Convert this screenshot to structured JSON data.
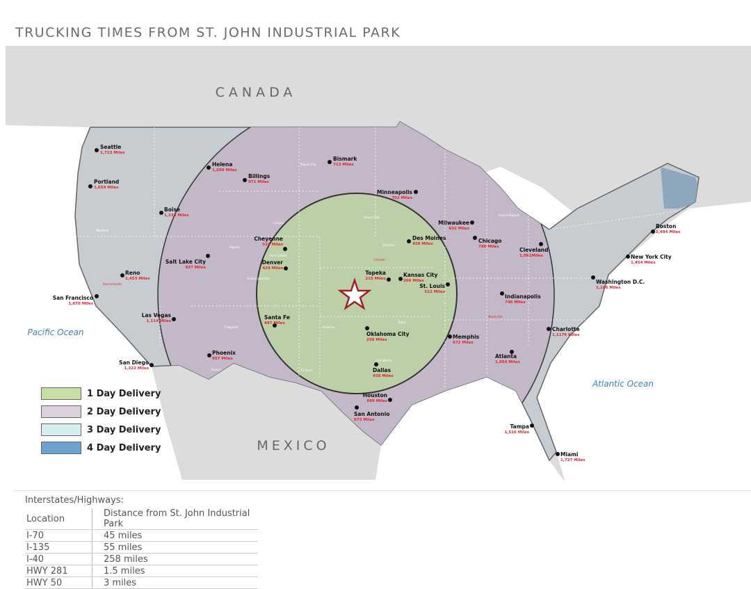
{
  "title": "TRUCKING TIMES FROM ST. JOHN INDUSTRIAL PARK",
  "labels": {
    "canada": "CANADA",
    "mexico": "MEXICO",
    "pacific": "Pacific Ocean",
    "atlantic": "Atlantic Ocean"
  },
  "colors": {
    "day1": "#bccfa8",
    "day2": "#c3b8c8",
    "day3": "#c6ccd0",
    "day4": "#8ea7bc",
    "land_other": "#dcdcdc",
    "distance_text": "#e8202a",
    "star": "#a51c24"
  },
  "legend": [
    {
      "label": "1 Day Delivery",
      "color": "#c6dfa4"
    },
    {
      "label": "2 Day Delivery",
      "color": "#dccfdf"
    },
    {
      "label": "3 Day Delivery",
      "color": "#d4eef0"
    },
    {
      "label": "4 Day Delivery",
      "color": "#6da2d0"
    }
  ],
  "cities": [
    {
      "name": "Seattle",
      "dist": "1,723 Miles"
    },
    {
      "name": "Portland",
      "dist": "1,659 Miles"
    },
    {
      "name": "Boise",
      "dist": "1,233 Miles"
    },
    {
      "name": "Helena",
      "dist": "1,209 Miles"
    },
    {
      "name": "Billings",
      "dist": "971 Miles"
    },
    {
      "name": "Bismark",
      "dist": "713 Miles"
    },
    {
      "name": "Minneapolis",
      "dist": "702 Miles"
    },
    {
      "name": "Milwaukee",
      "dist": "832 Miles"
    },
    {
      "name": "Chicago",
      "dist": "790 Miles"
    },
    {
      "name": "Des Moines",
      "dist": "459 Miles"
    },
    {
      "name": "Cheyenne",
      "dist": "519 Miles"
    },
    {
      "name": "Salt Lake City",
      "dist": "937 Miles"
    },
    {
      "name": "Denver",
      "dist": "429 Miles"
    },
    {
      "name": "Topeka",
      "dist": "215 Miles"
    },
    {
      "name": "Kansas City",
      "dist": "266 Miles"
    },
    {
      "name": "St. Louis",
      "dist": "512 Miles"
    },
    {
      "name": "Reno",
      "dist": "1,453 Miles"
    },
    {
      "name": "San Francisco",
      "dist": "1,670 Miles"
    },
    {
      "name": "Las Vegas",
      "dist": "1,114 Miles"
    },
    {
      "name": "Santa Fe",
      "dist": "497 Miles"
    },
    {
      "name": "Oklahoma City",
      "dist": "256 Miles"
    },
    {
      "name": "Phoenix",
      "dist": "957 Miles"
    },
    {
      "name": "San Diego",
      "dist": "1,322 Miles"
    },
    {
      "name": "Dallas",
      "dist": "458 Miles"
    },
    {
      "name": "Houston",
      "dist": "699 Miles"
    },
    {
      "name": "San Antonio",
      "dist": "673 Miles"
    },
    {
      "name": "Memphis",
      "dist": "672 Miles"
    },
    {
      "name": "Atlanta",
      "dist": "1,064 Miles"
    },
    {
      "name": "Charlotte",
      "dist": "1,1176 Miles"
    },
    {
      "name": "Tampa",
      "dist": "1,516 Miles"
    },
    {
      "name": "Miami",
      "dist": "1,727 Miles"
    },
    {
      "name": "Cleveland",
      "dist": "1,061Miles"
    },
    {
      "name": "Indianapolis",
      "dist": "746 Miles"
    },
    {
      "name": "Washington D.C.",
      "dist": "1,186 Miles"
    },
    {
      "name": "New York City",
      "dist": "1,454 Miles"
    },
    {
      "name": "Boston",
      "dist": "1,494 Miles"
    }
  ],
  "minor_cities": [
    "Medford",
    "Sacramento",
    "Ogden",
    "Casper",
    "Fort Collins",
    "Grand Junction",
    "Rapid City",
    "Sioux Falls",
    "Omaha",
    "Lincoln",
    "Tulsa",
    "Amarillo",
    "Fort Worth",
    "Flagstaff",
    "Tucson",
    "El Paso",
    "Grand Rapids",
    "Nashville"
  ],
  "highways": {
    "heading": "Interstates/Highways:",
    "columns": [
      "Location",
      "Distance from St. John Industrial Park"
    ],
    "rows": [
      [
        "I-70",
        "45 miles"
      ],
      [
        "I-135",
        "55 miles"
      ],
      [
        "I-40",
        "258 miles"
      ],
      [
        "HWY 281",
        "1.5 miles"
      ],
      [
        "HWY 50",
        "3 miles"
      ]
    ]
  }
}
